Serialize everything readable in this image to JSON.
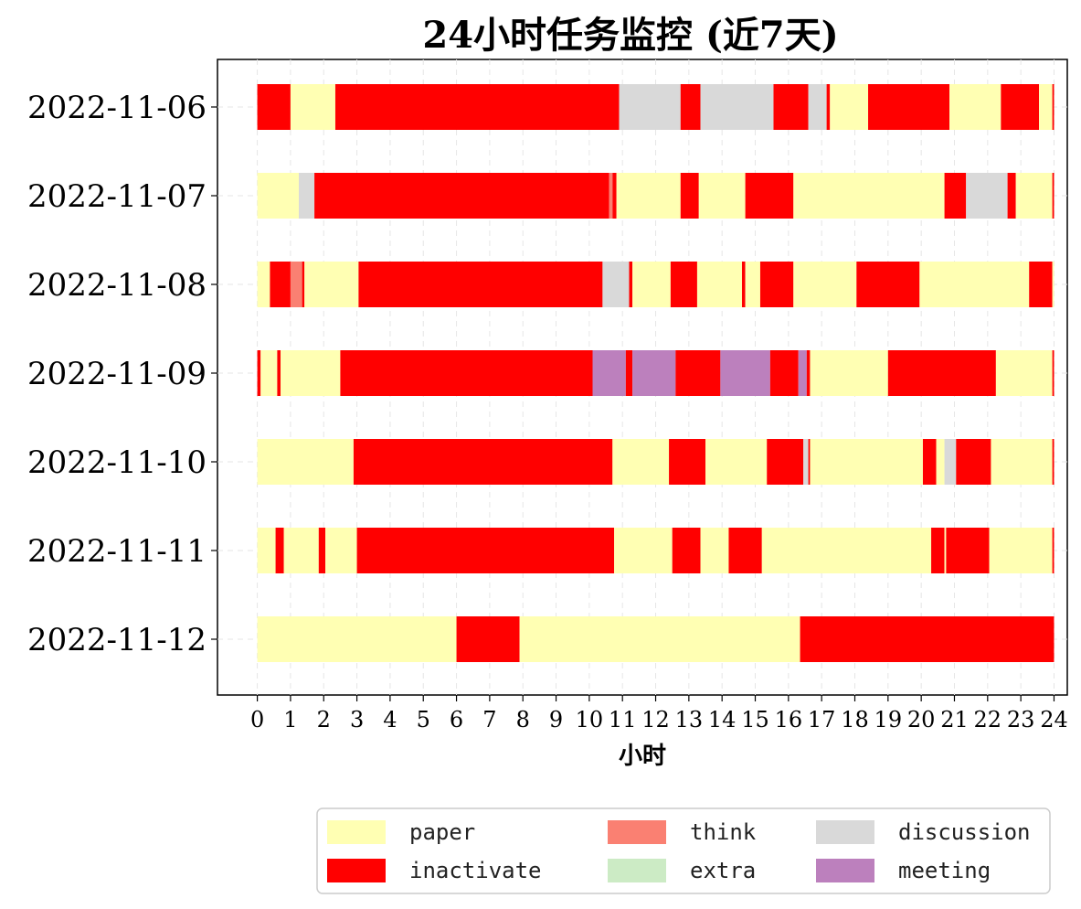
{
  "chart_data": {
    "type": "bar",
    "orientation": "horizontal-timeline",
    "title": "24小时任务监控 (近7天)",
    "xlabel": "小时",
    "ylabel": "",
    "xlim": [
      -1.2,
      24.4
    ],
    "x_ticks": [
      0,
      1,
      2,
      3,
      4,
      5,
      6,
      7,
      8,
      9,
      10,
      11,
      12,
      13,
      14,
      15,
      16,
      17,
      18,
      19,
      20,
      21,
      22,
      23,
      24
    ],
    "grid": true,
    "legend_position": "bottom-center",
    "colors": {
      "paper": "#FFFFB3",
      "inactivate": "#FF0000",
      "think": "#FA8072",
      "extra": "#CCEBC5",
      "discussion": "#D9D9D9",
      "meeting": "#BC80BD"
    },
    "legend": [
      {
        "key": "paper",
        "label": "paper"
      },
      {
        "key": "inactivate",
        "label": "inactivate"
      },
      {
        "key": "think",
        "label": "think"
      },
      {
        "key": "extra",
        "label": "extra"
      },
      {
        "key": "discussion",
        "label": "discussion"
      },
      {
        "key": "meeting",
        "label": "meeting"
      }
    ],
    "rows": [
      {
        "date": "2022-11-06",
        "segments": [
          [
            "inactivate",
            0,
            1.0
          ],
          [
            "paper",
            1.0,
            2.35
          ],
          [
            "inactivate",
            2.35,
            10.9
          ],
          [
            "discussion",
            10.9,
            12.75
          ],
          [
            "inactivate",
            12.75,
            13.35
          ],
          [
            "discussion",
            13.35,
            15.55
          ],
          [
            "inactivate",
            15.55,
            16.6
          ],
          [
            "discussion",
            16.6,
            17.15
          ],
          [
            "inactivate",
            17.15,
            17.25
          ],
          [
            "paper",
            17.25,
            18.4
          ],
          [
            "inactivate",
            18.4,
            20.85
          ],
          [
            "paper",
            20.85,
            22.4
          ],
          [
            "inactivate",
            22.4,
            23.55
          ],
          [
            "paper",
            23.55,
            23.95
          ],
          [
            "inactivate",
            23.95,
            24.0
          ]
        ]
      },
      {
        "date": "2022-11-07",
        "segments": [
          [
            "paper",
            0,
            1.25
          ],
          [
            "discussion",
            1.25,
            1.72
          ],
          [
            "inactivate",
            1.72,
            10.6
          ],
          [
            "think",
            10.6,
            10.7
          ],
          [
            "inactivate",
            10.7,
            10.82
          ],
          [
            "paper",
            10.82,
            12.75
          ],
          [
            "inactivate",
            12.75,
            13.3
          ],
          [
            "paper",
            13.3,
            14.7
          ],
          [
            "inactivate",
            14.7,
            16.15
          ],
          [
            "paper",
            16.15,
            20.7
          ],
          [
            "inactivate",
            20.7,
            21.35
          ],
          [
            "discussion",
            21.35,
            22.6
          ],
          [
            "inactivate",
            22.6,
            22.85
          ],
          [
            "paper",
            22.85,
            23.95
          ],
          [
            "inactivate",
            23.95,
            24.0
          ]
        ]
      },
      {
        "date": "2022-11-08",
        "segments": [
          [
            "paper",
            0,
            0.38
          ],
          [
            "inactivate",
            0.38,
            1.0
          ],
          [
            "think",
            1.0,
            1.35
          ],
          [
            "inactivate",
            1.35,
            1.42
          ],
          [
            "paper",
            1.42,
            3.05
          ],
          [
            "inactivate",
            3.05,
            10.4
          ],
          [
            "discussion",
            10.4,
            11.2
          ],
          [
            "inactivate",
            11.2,
            11.3
          ],
          [
            "paper",
            11.3,
            12.45
          ],
          [
            "inactivate",
            12.45,
            13.25
          ],
          [
            "paper",
            13.25,
            14.6
          ],
          [
            "inactivate",
            14.6,
            14.7
          ],
          [
            "paper",
            14.7,
            15.15
          ],
          [
            "inactivate",
            15.15,
            16.15
          ],
          [
            "paper",
            16.15,
            18.05
          ],
          [
            "inactivate",
            18.05,
            19.95
          ],
          [
            "paper",
            19.95,
            23.25
          ],
          [
            "inactivate",
            23.25,
            23.95
          ],
          [
            "paper",
            23.95,
            24.0
          ]
        ]
      },
      {
        "date": "2022-11-09",
        "segments": [
          [
            "inactivate",
            0,
            0.1
          ],
          [
            "paper",
            0.1,
            0.6
          ],
          [
            "inactivate",
            0.6,
            0.7
          ],
          [
            "paper",
            0.7,
            2.5
          ],
          [
            "inactivate",
            2.5,
            10.1
          ],
          [
            "meeting",
            10.1,
            11.1
          ],
          [
            "inactivate",
            11.1,
            11.3
          ],
          [
            "meeting",
            11.3,
            12.6
          ],
          [
            "inactivate",
            12.6,
            13.95
          ],
          [
            "meeting",
            13.95,
            15.45
          ],
          [
            "inactivate",
            15.45,
            16.3
          ],
          [
            "meeting",
            16.3,
            16.55
          ],
          [
            "inactivate",
            16.55,
            16.65
          ],
          [
            "paper",
            16.65,
            19.0
          ],
          [
            "inactivate",
            19.0,
            22.25
          ],
          [
            "paper",
            22.25,
            23.95
          ],
          [
            "inactivate",
            23.95,
            24.0
          ]
        ]
      },
      {
        "date": "2022-11-10",
        "segments": [
          [
            "paper",
            0,
            2.9
          ],
          [
            "inactivate",
            2.9,
            10.7
          ],
          [
            "paper",
            10.7,
            12.4
          ],
          [
            "inactivate",
            12.4,
            13.5
          ],
          [
            "paper",
            13.5,
            15.35
          ],
          [
            "inactivate",
            15.35,
            16.45
          ],
          [
            "discussion",
            16.45,
            16.6
          ],
          [
            "inactivate",
            16.6,
            16.65
          ],
          [
            "paper",
            16.65,
            20.05
          ],
          [
            "inactivate",
            20.05,
            20.45
          ],
          [
            "paper",
            20.45,
            20.7
          ],
          [
            "discussion",
            20.7,
            21.05
          ],
          [
            "inactivate",
            21.05,
            22.1
          ],
          [
            "paper",
            22.1,
            23.95
          ],
          [
            "inactivate",
            23.95,
            24.0
          ]
        ]
      },
      {
        "date": "2022-11-11",
        "segments": [
          [
            "paper",
            0,
            0.55
          ],
          [
            "inactivate",
            0.55,
            0.8
          ],
          [
            "paper",
            0.8,
            1.85
          ],
          [
            "inactivate",
            1.85,
            2.05
          ],
          [
            "paper",
            2.05,
            3.0
          ],
          [
            "inactivate",
            3.0,
            10.75
          ],
          [
            "paper",
            10.75,
            12.5
          ],
          [
            "inactivate",
            12.5,
            13.35
          ],
          [
            "paper",
            13.35,
            14.2
          ],
          [
            "inactivate",
            14.2,
            15.2
          ],
          [
            "paper",
            15.2,
            20.3
          ],
          [
            "inactivate",
            20.3,
            20.7
          ],
          [
            "paper",
            20.7,
            20.75
          ],
          [
            "inactivate",
            20.75,
            22.05
          ],
          [
            "paper",
            22.05,
            23.95
          ],
          [
            "inactivate",
            23.95,
            24.0
          ]
        ]
      },
      {
        "date": "2022-11-12",
        "segments": [
          [
            "paper",
            0,
            6.0
          ],
          [
            "inactivate",
            6.0,
            7.9
          ],
          [
            "paper",
            7.9,
            16.35
          ],
          [
            "inactivate",
            16.35,
            24.0
          ]
        ]
      }
    ]
  }
}
